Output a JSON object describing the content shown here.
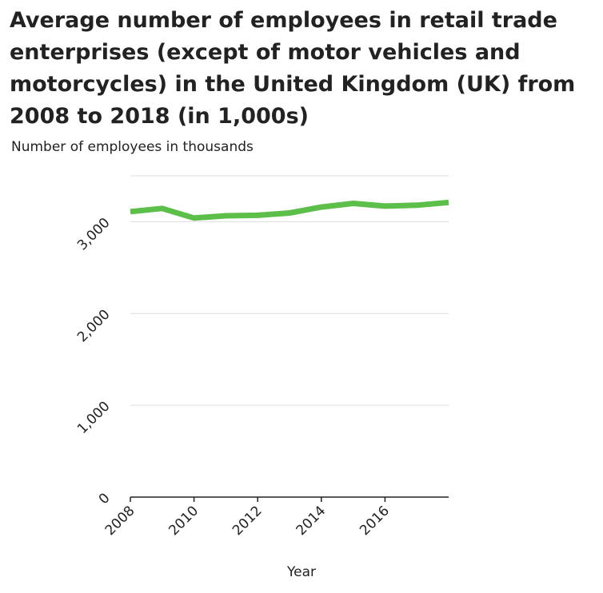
{
  "chart_data": {
    "type": "line",
    "title": "Average number of employees in retail trade enterprises (except of motor vehicles and motorcycles) in the United Kingdom (UK) from 2008 to 2018 (in 1,000s)",
    "xlabel": "Year",
    "ylabel": "Number of employees in thousands",
    "x": [
      2008,
      2009,
      2010,
      2011,
      2012,
      2013,
      2014,
      2015,
      2016,
      2017,
      2018
    ],
    "series": [
      {
        "values": [
          3110,
          3145,
          3040,
          3065,
          3070,
          3095,
          3160,
          3200,
          3170,
          3180,
          3210
        ]
      }
    ],
    "xlim": [
      2008,
      2018
    ],
    "ylim": [
      0,
      3500
    ],
    "xticks": [
      2008,
      2010,
      2012,
      2014,
      2016
    ],
    "xtick_labels": [
      "2008",
      "2010",
      "2012",
      "2014",
      "2016"
    ],
    "yticks": [
      0,
      1000,
      2000,
      3000
    ],
    "ytick_labels": [
      "0",
      "1,000",
      "2,000",
      "3,000"
    ],
    "grid": true,
    "line_color": "#5cbf4a",
    "grid_color": "#dddddd",
    "axis_color": "#222222"
  }
}
